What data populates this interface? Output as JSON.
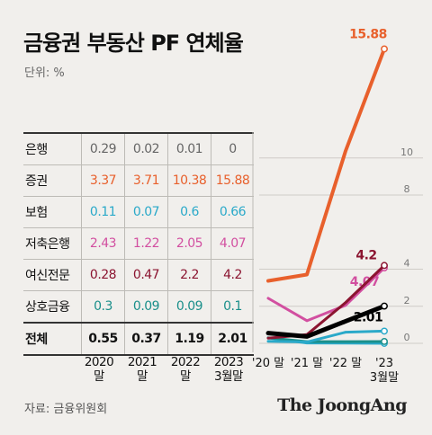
{
  "title": "금융권 부동산 PF 연체율",
  "unit": "단위: %",
  "source": "자료: 금융위원회",
  "logo": "The JoongAng",
  "table": {
    "year_labels": [
      [
        "2020",
        "말"
      ],
      [
        "2021",
        "말"
      ],
      [
        "2022",
        "말"
      ],
      [
        "2023",
        "3월말"
      ]
    ],
    "rows": [
      {
        "name": "은행",
        "values": [
          "0.29",
          "0.02",
          "0.01",
          "0"
        ],
        "color": "#666666"
      },
      {
        "name": "증권",
        "values": [
          "3.37",
          "3.71",
          "10.38",
          "15.88"
        ],
        "color": "#e8602c"
      },
      {
        "name": "보험",
        "values": [
          "0.11",
          "0.07",
          "0.6",
          "0.66"
        ],
        "color": "#2aa9c9"
      },
      {
        "name": "저축은행",
        "values": [
          "2.43",
          "1.22",
          "2.05",
          "4.07"
        ],
        "color": "#d24fa0"
      },
      {
        "name": "여신전문",
        "values": [
          "0.28",
          "0.47",
          "2.2",
          "4.2"
        ],
        "color": "#8b1430"
      },
      {
        "name": "상호금융",
        "values": [
          "0.3",
          "0.09",
          "0.09",
          "0.1"
        ],
        "color": "#1a8f8a"
      },
      {
        "name": "전체",
        "values": [
          "0.55",
          "0.37",
          "1.19",
          "2.01"
        ],
        "color": "#111111"
      }
    ]
  },
  "chart_data": {
    "type": "line",
    "x": [
      "'20 말",
      "'21 말",
      "'22 말",
      "'23 3월말"
    ],
    "xtick_labels": [
      [
        "'20 말"
      ],
      [
        "'21 말"
      ],
      [
        "'22 말"
      ],
      [
        "'23",
        "3월말"
      ]
    ],
    "yticks": [
      0,
      2,
      4,
      8,
      10
    ],
    "ylim": [
      0,
      16
    ],
    "series": [
      {
        "name": "은행",
        "values": [
          0.29,
          0.02,
          0.01,
          0
        ],
        "color": "#2aa9c9"
      },
      {
        "name": "상호금융",
        "values": [
          0.3,
          0.09,
          0.09,
          0.1
        ],
        "color": "#1a8f8a"
      },
      {
        "name": "보험",
        "values": [
          0.11,
          0.07,
          0.6,
          0.66
        ],
        "color": "#2aa9c9"
      },
      {
        "name": "저축은행",
        "values": [
          2.43,
          1.22,
          2.05,
          4.07
        ],
        "color": "#d24fa0",
        "end_label": "4.07"
      },
      {
        "name": "여신전문",
        "values": [
          0.28,
          0.47,
          2.2,
          4.2
        ],
        "color": "#8b1430",
        "end_label": "4.2"
      },
      {
        "name": "전체",
        "values": [
          0.55,
          0.37,
          1.19,
          2.01
        ],
        "color": "#000000",
        "end_label": "2.01"
      },
      {
        "name": "증권",
        "values": [
          3.37,
          3.71,
          10.38,
          15.88
        ],
        "color": "#e8602c",
        "end_label": "15.88"
      }
    ]
  }
}
